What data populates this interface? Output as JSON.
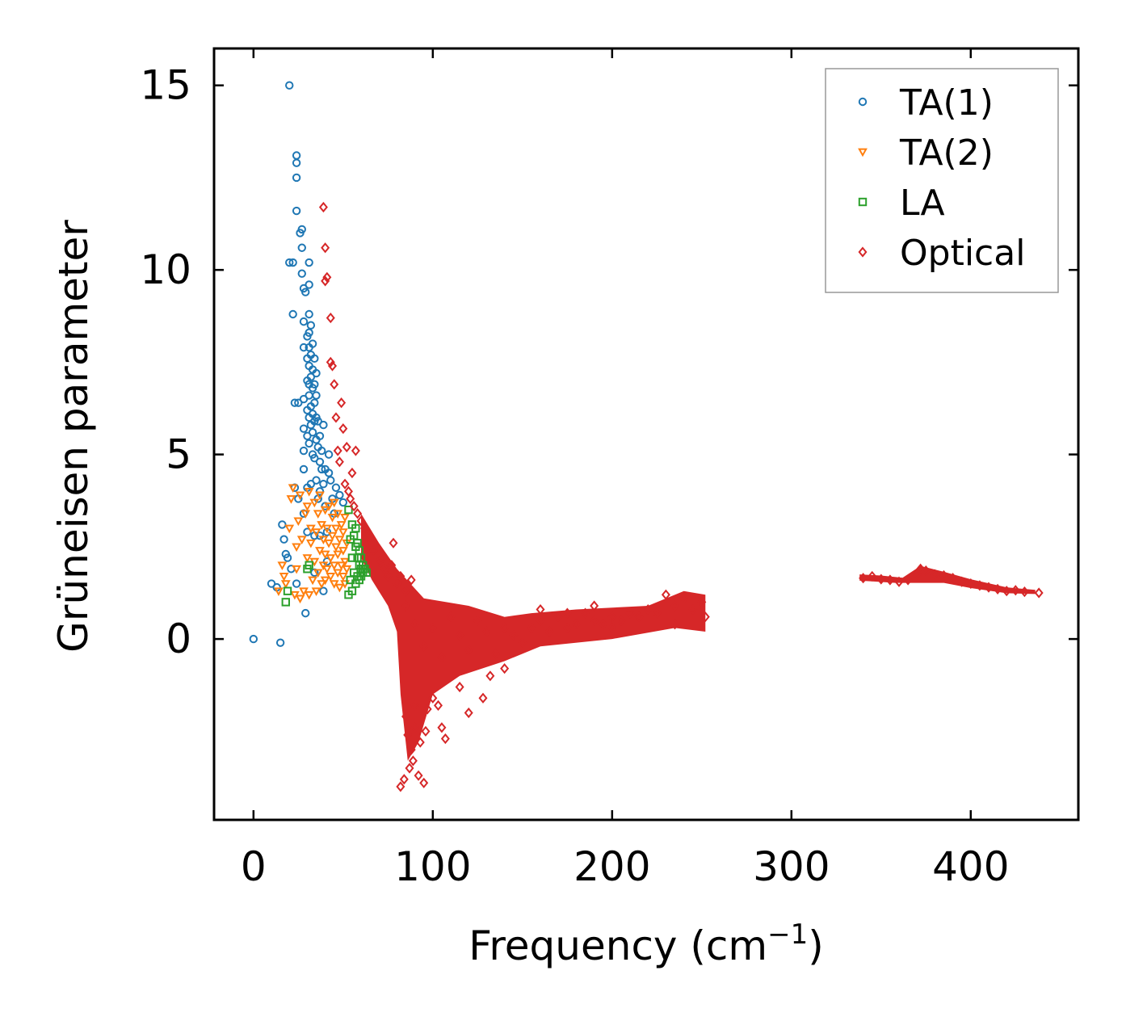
{
  "chart_data": {
    "type": "scatter",
    "title": "",
    "xlabel": "Frequency (cm",
    "xlabel_sup": "−1",
    "xlabel_end": ")",
    "ylabel": "Grüneisen parameter",
    "xlim": [
      -22,
      460
    ],
    "ylim": [
      -4.9,
      16.0
    ],
    "x_ticks": [
      0,
      100,
      200,
      300,
      400
    ],
    "x_tick_labels": [
      "0",
      "100",
      "200",
      "300",
      "400"
    ],
    "y_ticks": [
      0,
      5,
      10,
      15
    ],
    "y_tick_labels": [
      "0",
      "5",
      "10",
      "15"
    ],
    "legend_position": "top-right",
    "series": [
      {
        "name": "TA(1)",
        "marker": "circle",
        "color": "#1f77b4",
        "points": [
          [
            0,
            0
          ],
          [
            15,
            -0.1
          ],
          [
            10,
            1.5
          ],
          [
            13,
            1.4
          ],
          [
            16,
            3.1
          ],
          [
            17,
            2.7
          ],
          [
            18,
            2.3
          ],
          [
            19,
            2.2
          ],
          [
            21,
            1.9
          ],
          [
            20,
            10.2
          ],
          [
            22,
            10.2
          ],
          [
            20,
            15.0
          ],
          [
            22,
            8.8
          ],
          [
            23,
            6.4
          ],
          [
            23,
            4.1
          ],
          [
            24,
            1.5
          ],
          [
            24,
            11.6
          ],
          [
            24,
            12.5
          ],
          [
            24,
            12.9
          ],
          [
            24,
            13.1
          ],
          [
            25,
            3.8
          ],
          [
            25,
            6.4
          ],
          [
            26,
            11.0
          ],
          [
            27,
            11.1
          ],
          [
            27,
            10.6
          ],
          [
            27,
            9.9
          ],
          [
            28,
            9.5
          ],
          [
            28,
            8.6
          ],
          [
            28,
            7.9
          ],
          [
            28,
            6.5
          ],
          [
            28,
            5.7
          ],
          [
            28,
            5.1
          ],
          [
            28,
            4.6
          ],
          [
            28,
            3.4
          ],
          [
            29,
            0.7
          ],
          [
            29,
            9.4
          ],
          [
            30,
            8.2
          ],
          [
            30,
            7.6
          ],
          [
            30,
            7.0
          ],
          [
            30,
            6.2
          ],
          [
            30,
            5.5
          ],
          [
            30,
            4.1
          ],
          [
            30,
            2.9
          ],
          [
            31,
            10.2
          ],
          [
            31,
            9.6
          ],
          [
            31,
            8.8
          ],
          [
            31,
            8.3
          ],
          [
            31,
            7.9
          ],
          [
            31,
            7.4
          ],
          [
            31,
            6.9
          ],
          [
            31,
            6.6
          ],
          [
            31,
            6.0
          ],
          [
            31,
            5.3
          ],
          [
            32,
            8.5
          ],
          [
            32,
            7.7
          ],
          [
            32,
            7.1
          ],
          [
            32,
            6.3
          ],
          [
            32,
            5.8
          ],
          [
            32,
            4.2
          ],
          [
            33,
            8.0
          ],
          [
            33,
            7.3
          ],
          [
            33,
            6.8
          ],
          [
            33,
            6.1
          ],
          [
            33,
            5.6
          ],
          [
            33,
            5.0
          ],
          [
            34,
            7.6
          ],
          [
            34,
            6.9
          ],
          [
            34,
            6.4
          ],
          [
            34,
            5.9
          ],
          [
            34,
            4.9
          ],
          [
            34,
            2.8
          ],
          [
            34,
            1.8
          ],
          [
            35,
            7.2
          ],
          [
            35,
            6.6
          ],
          [
            35,
            6.0
          ],
          [
            35,
            5.4
          ],
          [
            35,
            4.3
          ],
          [
            36,
            5.9
          ],
          [
            36,
            5.2
          ],
          [
            36,
            3.8
          ],
          [
            37,
            5.5
          ],
          [
            37,
            4.8
          ],
          [
            37,
            4.0
          ],
          [
            37,
            2.8
          ],
          [
            38,
            5.1
          ],
          [
            38,
            4.6
          ],
          [
            39,
            4.2
          ],
          [
            39,
            5.8
          ],
          [
            39,
            1.3
          ],
          [
            40,
            4.6
          ],
          [
            40,
            3.6
          ],
          [
            41,
            2.9
          ],
          [
            41,
            2.1
          ],
          [
            42,
            4.5
          ],
          [
            42,
            5.0
          ],
          [
            43,
            4.3
          ],
          [
            44,
            3.8
          ],
          [
            45,
            3.4
          ],
          [
            46,
            4.1
          ],
          [
            48,
            3.9
          ],
          [
            50,
            3.7
          ]
        ]
      },
      {
        "name": "TA(2)",
        "marker": "triangle-down",
        "color": "#ff7f0e",
        "points": [
          [
            14,
            1.3
          ],
          [
            16,
            2.0
          ],
          [
            17,
            1.7
          ],
          [
            18,
            1.5
          ],
          [
            20,
            3.0
          ],
          [
            21,
            3.8
          ],
          [
            22,
            4.1
          ],
          [
            23,
            1.2
          ],
          [
            24,
            1.9
          ],
          [
            24,
            2.5
          ],
          [
            25,
            3.2
          ],
          [
            26,
            1.1
          ],
          [
            26,
            3.9
          ],
          [
            27,
            2.7
          ],
          [
            28,
            1.3
          ],
          [
            29,
            3.4
          ],
          [
            30,
            2.2
          ],
          [
            30,
            3.6
          ],
          [
            31,
            1.2
          ],
          [
            31,
            4.0
          ],
          [
            32,
            2.6
          ],
          [
            32,
            3.0
          ],
          [
            33,
            1.6
          ],
          [
            34,
            3.7
          ],
          [
            34,
            2.1
          ],
          [
            35,
            1.3
          ],
          [
            35,
            2.9
          ],
          [
            36,
            3.4
          ],
          [
            36,
            1.8
          ],
          [
            37,
            2.4
          ],
          [
            37,
            3.9
          ],
          [
            38,
            1.5
          ],
          [
            38,
            3.1
          ],
          [
            39,
            2.7
          ],
          [
            39,
            2.0
          ],
          [
            40,
            3.5
          ],
          [
            40,
            1.6
          ],
          [
            40,
            2.3
          ],
          [
            41,
            3.0
          ],
          [
            41,
            1.9
          ],
          [
            42,
            2.6
          ],
          [
            42,
            3.6
          ],
          [
            43,
            1.7
          ],
          [
            43,
            2.2
          ],
          [
            44,
            3.3
          ],
          [
            44,
            2.8
          ],
          [
            45,
            1.5
          ],
          [
            45,
            2.0
          ],
          [
            45,
            3.7
          ],
          [
            46,
            2.5
          ],
          [
            46,
            3.0
          ],
          [
            47,
            1.8
          ],
          [
            47,
            2.3
          ],
          [
            47,
            3.4
          ],
          [
            48,
            1.4
          ],
          [
            48,
            2.7
          ],
          [
            49,
            2.0
          ],
          [
            49,
            3.1
          ],
          [
            50,
            1.7
          ],
          [
            50,
            2.4
          ],
          [
            50,
            2.9
          ],
          [
            51,
            1.5
          ],
          [
            51,
            2.1
          ],
          [
            51,
            3.3
          ],
          [
            52,
            1.9
          ],
          [
            52,
            2.6
          ]
        ]
      },
      {
        "name": "LA",
        "marker": "square",
        "color": "#2ca02c",
        "points": [
          [
            18,
            1.0
          ],
          [
            19,
            1.3
          ],
          [
            30,
            1.9
          ],
          [
            31,
            2.0
          ],
          [
            53,
            3.5
          ],
          [
            53,
            1.2
          ],
          [
            54,
            2.7
          ],
          [
            54,
            1.6
          ],
          [
            55,
            3.1
          ],
          [
            55,
            2.2
          ],
          [
            55,
            1.3
          ],
          [
            56,
            2.8
          ],
          [
            56,
            1.8
          ],
          [
            57,
            2.5
          ],
          [
            57,
            1.5
          ],
          [
            57,
            3.0
          ],
          [
            58,
            2.2
          ],
          [
            58,
            1.7
          ],
          [
            58,
            2.6
          ],
          [
            59,
            2.0
          ],
          [
            59,
            1.6
          ],
          [
            59,
            2.4
          ],
          [
            60,
            1.9
          ],
          [
            60,
            2.2
          ],
          [
            60,
            1.7
          ],
          [
            61,
            2.0
          ],
          [
            61,
            1.8
          ],
          [
            62,
            1.9
          ],
          [
            63,
            1.8
          ]
        ]
      },
      {
        "name": "Optical",
        "marker": "diamond",
        "color": "#d62728",
        "points": [
          [
            39,
            11.7
          ],
          [
            40,
            10.6
          ],
          [
            40,
            9.7
          ],
          [
            41,
            9.8
          ],
          [
            43,
            8.7
          ],
          [
            43,
            7.5
          ],
          [
            44,
            7.4
          ],
          [
            45,
            6.9
          ],
          [
            46,
            6.0
          ],
          [
            47,
            5.1
          ],
          [
            48,
            4.8
          ],
          [
            49,
            6.4
          ],
          [
            50,
            5.7
          ],
          [
            51,
            4.2
          ],
          [
            52,
            5.2
          ],
          [
            53,
            4.0
          ],
          [
            54,
            3.8
          ],
          [
            55,
            4.5
          ],
          [
            56,
            3.6
          ],
          [
            57,
            5.1
          ],
          [
            58,
            3.4
          ],
          [
            60,
            3.2
          ],
          [
            62,
            3.0
          ],
          [
            63,
            2.9
          ],
          [
            65,
            2.7
          ],
          [
            67,
            2.4
          ],
          [
            70,
            2.1
          ],
          [
            72,
            2.2
          ],
          [
            73,
            1.9
          ],
          [
            75,
            1.7
          ],
          [
            77,
            2.0
          ],
          [
            78,
            2.6
          ],
          [
            80,
            1.5
          ],
          [
            82,
            1.7
          ],
          [
            85,
            1.3
          ],
          [
            88,
            1.6
          ],
          [
            82,
            -4.0
          ],
          [
            84,
            -3.8
          ],
          [
            87,
            -3.5
          ],
          [
            89,
            -3.3
          ],
          [
            92,
            -3.7
          ],
          [
            95,
            -3.9
          ],
          [
            86,
            -2.6
          ],
          [
            88,
            -3.0
          ],
          [
            90,
            -2.4
          ],
          [
            93,
            -2.8
          ],
          [
            96,
            -2.5
          ],
          [
            85,
            -2.1
          ],
          [
            90,
            -1.8
          ],
          [
            97,
            -1.9
          ],
          [
            100,
            -1.6
          ],
          [
            103,
            -1.8
          ],
          [
            105,
            -2.4
          ],
          [
            107,
            -2.7
          ],
          [
            115,
            -1.3
          ],
          [
            120,
            -2.0
          ],
          [
            128,
            -1.6
          ],
          [
            132,
            -1.0
          ],
          [
            140,
            -0.8
          ],
          [
            85,
            0.9
          ],
          [
            90,
            0.4
          ],
          [
            95,
            -0.2
          ],
          [
            100,
            0.3
          ],
          [
            105,
            -0.5
          ],
          [
            110,
            0.6
          ],
          [
            115,
            0.1
          ],
          [
            120,
            -0.3
          ],
          [
            125,
            0.5
          ],
          [
            130,
            0.2
          ],
          [
            135,
            -0.4
          ],
          [
            140,
            0.3
          ],
          [
            145,
            0.1
          ],
          [
            150,
            -0.1
          ],
          [
            155,
            0.3
          ],
          [
            160,
            0.5
          ],
          [
            165,
            0.2
          ],
          [
            170,
            0.6
          ],
          [
            175,
            0.3
          ],
          [
            180,
            0.4
          ],
          [
            185,
            0.7
          ],
          [
            190,
            0.5
          ],
          [
            195,
            0.4
          ],
          [
            200,
            0.6
          ],
          [
            205,
            0.5
          ],
          [
            210,
            0.7
          ],
          [
            215,
            0.6
          ],
          [
            220,
            0.8
          ],
          [
            225,
            0.7
          ],
          [
            230,
            1.2
          ],
          [
            235,
            0.9
          ],
          [
            240,
            1.1
          ],
          [
            245,
            0.8
          ],
          [
            250,
            1.0
          ],
          [
            252,
            0.6
          ],
          [
            235,
            0.4
          ],
          [
            160,
            0.8
          ],
          [
            175,
            0.7
          ],
          [
            190,
            0.9
          ],
          [
            200,
            0.3
          ],
          [
            340,
            1.65
          ],
          [
            345,
            1.7
          ],
          [
            350,
            1.62
          ],
          [
            355,
            1.6
          ],
          [
            360,
            1.55
          ],
          [
            365,
            1.6
          ],
          [
            370,
            1.75
          ],
          [
            372,
            1.9
          ],
          [
            375,
            1.85
          ],
          [
            380,
            1.75
          ],
          [
            385,
            1.72
          ],
          [
            390,
            1.65
          ],
          [
            395,
            1.55
          ],
          [
            400,
            1.5
          ],
          [
            405,
            1.45
          ],
          [
            410,
            1.4
          ],
          [
            415,
            1.35
          ],
          [
            420,
            1.3
          ],
          [
            425,
            1.32
          ],
          [
            430,
            1.28
          ],
          [
            438,
            1.25
          ]
        ]
      }
    ]
  }
}
